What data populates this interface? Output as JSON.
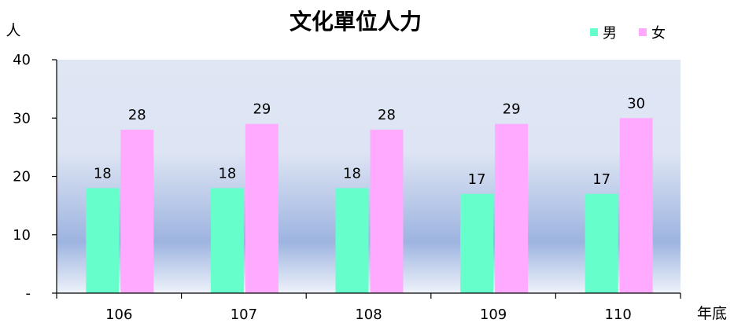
{
  "chart_data": {
    "type": "bar",
    "title": "文化單位人力",
    "ylabel": "人",
    "xlabel": "年底",
    "categories": [
      "106",
      "107",
      "108",
      "109",
      "110"
    ],
    "series": [
      {
        "name": "男",
        "color": "#66ffcc",
        "values": [
          18,
          18,
          18,
          17,
          17
        ]
      },
      {
        "name": "女",
        "color": "#ffaaff",
        "values": [
          28,
          29,
          28,
          29,
          30
        ]
      }
    ],
    "ylim": [
      0,
      40
    ],
    "yticks": [
      0,
      10,
      20,
      30,
      40
    ],
    "ytick_labels": [
      "-",
      "10",
      "20",
      "30",
      "40"
    ],
    "grid": false,
    "legend": "top-right",
    "data_labels": true
  }
}
